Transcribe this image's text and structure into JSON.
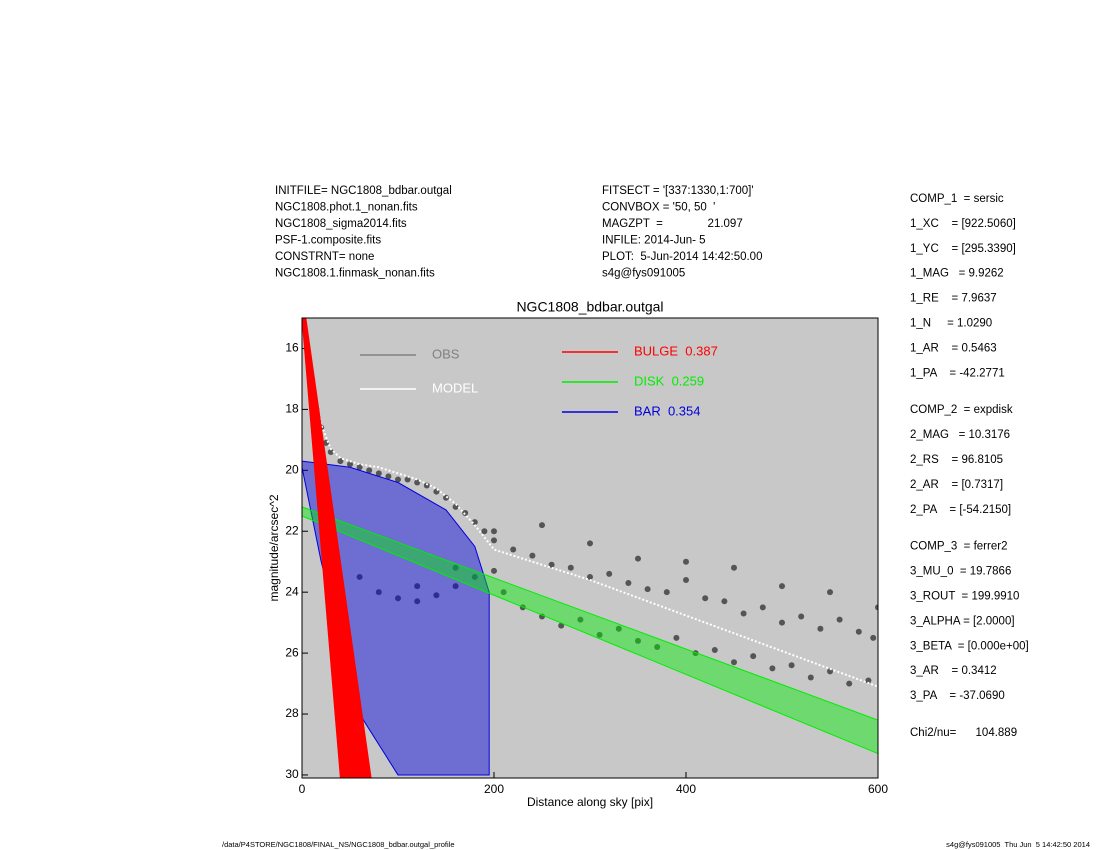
{
  "header": {
    "left": [
      "INITFILE= NGC1808_bdbar.outgal",
      "NGC1808.phot.1_nonan.fits",
      "NGC1808_sigma2014.fits",
      "PSF-1.composite.fits",
      "CONSTRNT= none",
      "NGC1808.1.finmask_nonan.fits"
    ],
    "middle": [
      "FITSECT = '[337:1330,1:700]'",
      "CONVBOX = '50, 50  '",
      "MAGZPT  =              21.097",
      "INFILE: 2014-Jun- 5",
      "PLOT:  5-Jun-2014 14:42:50.00",
      "s4g@fys091005"
    ]
  },
  "params": [
    [
      "COMP_1  = sersic",
      "1_XC    = [922.5060]",
      "1_YC    = [295.3390]",
      "1_MAG   = 9.9262",
      "1_RE    = 7.9637",
      "1_N     = 1.0290",
      "1_AR    = 0.5463",
      "1_PA    = -42.2771"
    ],
    [
      "COMP_2  = expdisk",
      "2_MAG   = 10.3176",
      "2_RS    = 96.8105",
      "2_AR    = [0.7317]",
      "2_PA    = [-54.2150]"
    ],
    [
      "COMP_3  = ferrer2",
      "3_MU_0  = 19.7866",
      "3_ROUT  = 199.9910",
      "3_ALPHA = [2.0000]",
      "3_BETA  = [0.000e+00]",
      "3_AR    = 0.3412",
      "3_PA    = -37.0690"
    ],
    [
      "Chi2/nu=      104.889"
    ]
  ],
  "footer": {
    "left": "/data/P4STORE/NGC1808/FINAL_NS/NGC1808_bdbar.outgal_profile",
    "right": "s4g@fys091005  Thu Jun  5 14:42:50 2014"
  },
  "chart_data": {
    "type": "scatter",
    "title": "NGC1808_bdbar.outgal",
    "x_label": "Distance along sky [pix]",
    "y_label": "magnitude/arcsec^2",
    "xlim": [
      0,
      600
    ],
    "xticks": [
      0,
      200,
      400,
      600
    ],
    "ylim": [
      15,
      30.1
    ],
    "y_reversed": true,
    "yticks": [
      16,
      18,
      20,
      22,
      24,
      26,
      28,
      30
    ],
    "background": "#c8c8c8",
    "series": [
      {
        "name": "OBS",
        "color": "#555555",
        "legend_color": "#808080",
        "style": "points",
        "x": [
          5,
          8,
          12,
          15,
          20,
          25,
          30,
          40,
          50,
          60,
          70,
          80,
          90,
          100,
          110,
          120,
          130,
          140,
          150,
          160,
          170,
          180,
          190,
          200,
          60,
          80,
          100,
          120,
          140,
          160,
          180,
          200,
          220,
          240,
          260,
          280,
          300,
          320,
          340,
          360,
          380,
          400,
          420,
          440,
          460,
          480,
          500,
          520,
          540,
          560,
          580,
          595,
          210,
          230,
          250,
          270,
          290,
          310,
          330,
          350,
          370,
          390,
          410,
          430,
          450,
          470,
          490,
          510,
          530,
          550,
          570,
          590,
          250,
          300,
          350,
          400,
          450,
          500,
          550,
          600,
          120,
          160,
          200
        ],
        "values": [
          16,
          16.8,
          17.5,
          18,
          18.6,
          19.1,
          19.4,
          19.7,
          19.8,
          19.9,
          20,
          20.1,
          20.2,
          20.3,
          20.3,
          20.4,
          20.5,
          20.7,
          20.9,
          21.2,
          21.4,
          21.7,
          22,
          22.3,
          23.5,
          24,
          24.2,
          24.3,
          24.1,
          23.8,
          23.5,
          23.3,
          22.6,
          22.8,
          23.1,
          23.2,
          23.5,
          23.4,
          23.7,
          23.9,
          24,
          23.6,
          24.2,
          24.3,
          24.7,
          24.5,
          25,
          24.8,
          25.2,
          24.9,
          25.3,
          25.5,
          24,
          24.5,
          24.8,
          25.1,
          24.9,
          25.4,
          25.2,
          25.6,
          25.8,
          25.5,
          26,
          25.9,
          26.3,
          26.1,
          26.5,
          26.4,
          26.8,
          26.6,
          27,
          26.9,
          21.8,
          22.4,
          22.9,
          23,
          23.2,
          23.8,
          24,
          24.5,
          23.8,
          23.2,
          22
        ]
      },
      {
        "name": "BAR  0.354",
        "color": "#0000dd",
        "style": "polygon",
        "x": [
          0,
          50,
          100,
          150,
          180,
          195,
          195,
          150,
          100,
          60,
          20,
          0
        ],
        "values": [
          19.7,
          19.9,
          20.4,
          21.3,
          22.5,
          24,
          30,
          30,
          30,
          28,
          23,
          19.9
        ]
      },
      {
        "name": "DISK  0.259",
        "color": "#00ee00",
        "style": "polygon",
        "x": [
          0,
          600,
          600,
          0
        ],
        "values": [
          21.2,
          28.2,
          29.3,
          21.5
        ]
      },
      {
        "name": "MODEL",
        "color": "#ffffff",
        "style": "line",
        "x": [
          10,
          20,
          30,
          40,
          60,
          80,
          100,
          120,
          140,
          160,
          180,
          200,
          240,
          300,
          360,
          420,
          480,
          540,
          600
        ],
        "values": [
          17,
          18.5,
          19.3,
          19.6,
          19.8,
          19.9,
          20.1,
          20.3,
          20.6,
          21.1,
          21.8,
          22.6,
          23,
          23.6,
          24.3,
          25,
          25.7,
          26.4,
          27.1
        ]
      },
      {
        "name": "BULGE  0.387",
        "color": "#ff0000",
        "style": "polygon",
        "x": [
          0,
          4,
          72,
          40
        ],
        "values": [
          15,
          15,
          30.1,
          30.1
        ]
      }
    ]
  }
}
